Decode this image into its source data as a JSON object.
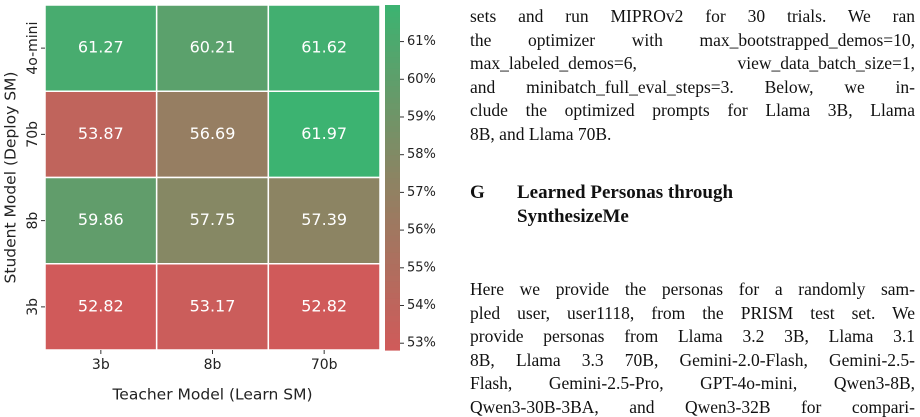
{
  "chart_data": {
    "type": "heatmap",
    "xlabel": "Teacher Model (Learn SM)",
    "ylabel": "Student Model (Deploy SM)",
    "x_categories": [
      "3b",
      "8b",
      "70b"
    ],
    "y_categories": [
      "4o-mini",
      "70b",
      "8b",
      "3b"
    ],
    "values": [
      [
        61.27,
        60.21,
        61.62
      ],
      [
        53.87,
        56.69,
        61.97
      ],
      [
        59.86,
        57.75,
        57.39
      ],
      [
        52.82,
        53.17,
        52.82
      ]
    ],
    "colormap": [
      "#d05a5a",
      "#8c8463",
      "#3cb371"
    ],
    "clim": [
      52.82,
      61.97
    ],
    "colorbar_ticks": [
      {
        "value": 53,
        "label": "53%"
      },
      {
        "value": 54,
        "label": "54%"
      },
      {
        "value": 55,
        "label": "55%"
      },
      {
        "value": 56,
        "label": "56%"
      },
      {
        "value": 57,
        "label": "57%"
      },
      {
        "value": 58,
        "label": "58%"
      },
      {
        "value": 59,
        "label": "59%"
      },
      {
        "value": 60,
        "label": "60%"
      },
      {
        "value": 61,
        "label": "61%"
      }
    ]
  },
  "text": {
    "paragraph1": [
      "sets and run MIPROv2 for 30 trials. We ran",
      "the optimizer with max_bootstrapped_demos=10,",
      "max_labeled_demos=6, view_data_batch_size=1,",
      "and minibatch_full_eval_steps=3. Below, we in-",
      "clude the optimized prompts for Llama 3B, Llama",
      "8B, and Llama 70B."
    ],
    "section_number": "G",
    "section_title": [
      "Learned Personas through",
      "SynthesizeMe"
    ],
    "paragraph2": [
      "Here we provide the personas for a randomly sam-",
      "pled user, user1118, from the PRISM test set. We",
      "provide personas from Llama 3.2 3B, Llama 3.1",
      "8B, Llama 3.3 70B, Gemini-2.0-Flash, Gemini-2.5-",
      "Flash, Gemini-2.5-Pro, GPT-4o-mini, Qwen3-8B,",
      "Qwen3-30B-3BA, and Qwen3-32B for compari-"
    ]
  }
}
